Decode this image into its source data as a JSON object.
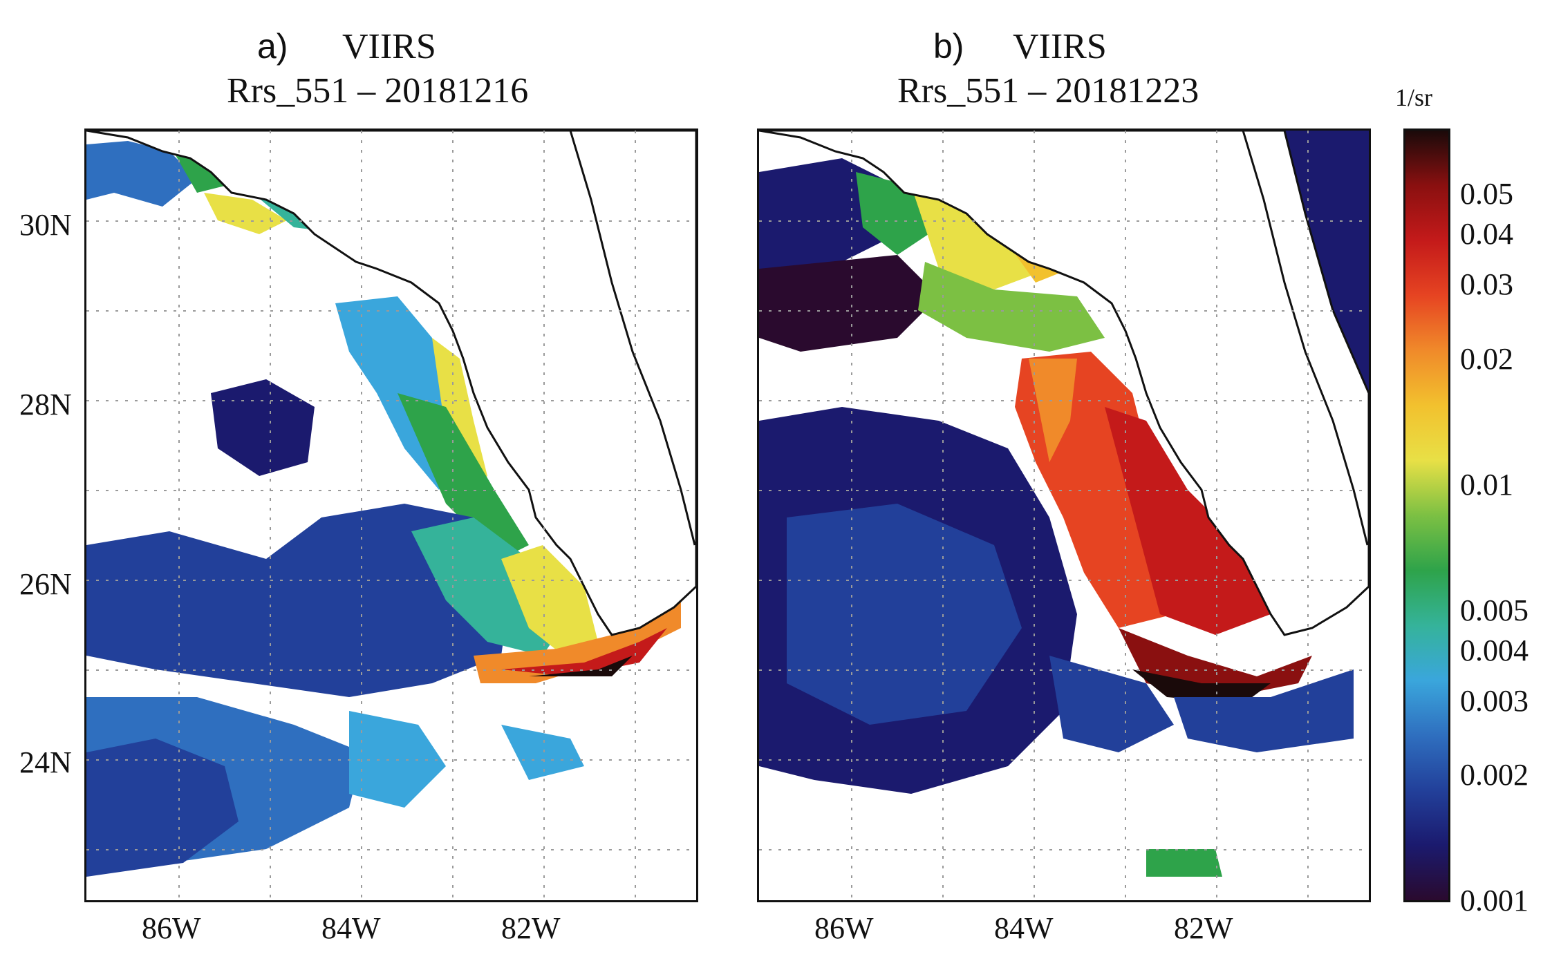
{
  "panels": [
    {
      "letter": "a)",
      "sensor": "VIIRS",
      "product_date": "Rrs_551 – 20181216",
      "lat_ticks": [
        "30N",
        "28N",
        "26N",
        "24N"
      ],
      "lon_ticks": [
        "86W",
        "84W",
        "82W"
      ]
    },
    {
      "letter": "b)",
      "sensor": "VIIRS",
      "product_date": "Rrs_551 – 20181223",
      "lon_ticks": [
        "86W",
        "84W",
        "82W"
      ]
    }
  ],
  "colorbar": {
    "unit": "1/sr",
    "ticks": [
      "0.05",
      "0.04",
      "0.03",
      "0.02",
      "0.01",
      "0.005",
      "0.004",
      "0.003",
      "0.002",
      "0.001"
    ],
    "colors": [
      "#2a0a2e",
      "#1b1a6e",
      "#22409a",
      "#2f6fbf",
      "#3aa6dc",
      "#35b39a",
      "#2ea34a",
      "#7cc043",
      "#e8e046",
      "#f2c12e",
      "#f08a2a",
      "#e64422",
      "#c41a1a",
      "#8a1010",
      "#1a0a0a"
    ]
  },
  "colors": {
    "land": "#ffffff",
    "coast": "#111111",
    "grid": "#9a9a9a"
  }
}
